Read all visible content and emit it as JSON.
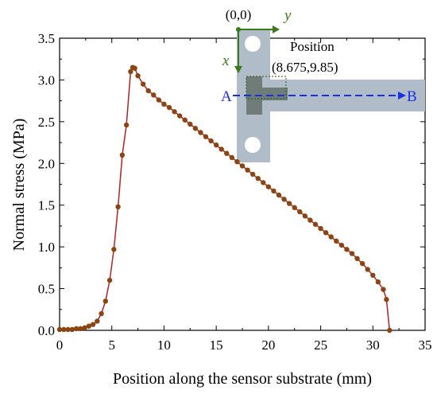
{
  "chart_data": {
    "type": "line",
    "title": "",
    "xlabel": "Position along the sensor substrate (mm)",
    "ylabel": "Normal stress (MPa)",
    "xlim": [
      0,
      35
    ],
    "ylim": [
      0,
      3.5
    ],
    "xticks": [
      "0",
      "5",
      "10",
      "15",
      "20",
      "25",
      "30",
      "35"
    ],
    "yticks": [
      "0.0",
      "0.5",
      "1.0",
      "1.5",
      "2.0",
      "2.5",
      "3.0",
      "3.5"
    ],
    "grid": false,
    "legend": "none",
    "line_color": "#b22222",
    "marker_color": "#8b4513",
    "series": [
      {
        "x": [
          0.0,
          0.4,
          0.8,
          1.2,
          1.6,
          2.0,
          2.4,
          2.8,
          3.2,
          3.6,
          4.0,
          4.4,
          4.8,
          5.2,
          5.6,
          6.0,
          6.4,
          6.8,
          7.0,
          7.2,
          7.5,
          8.0,
          8.5,
          9.0,
          9.5,
          10.0,
          10.5,
          11.0,
          11.5,
          12.0,
          12.5,
          13.0,
          13.5,
          14.0,
          14.5,
          15.0,
          15.5,
          16.0,
          16.5,
          17.0,
          17.5,
          18.0,
          18.5,
          19.0,
          19.5,
          20.0,
          20.5,
          21.0,
          21.5,
          22.0,
          22.5,
          23.0,
          23.5,
          24.0,
          24.5,
          25.0,
          25.5,
          26.0,
          26.5,
          27.0,
          27.5,
          28.0,
          28.5,
          29.0,
          29.5,
          30.0,
          30.5,
          31.0,
          31.3,
          31.6
        ],
        "y": [
          0.01,
          0.01,
          0.01,
          0.01,
          0.02,
          0.02,
          0.03,
          0.05,
          0.07,
          0.11,
          0.2,
          0.35,
          0.6,
          0.97,
          1.48,
          2.1,
          2.46,
          3.1,
          3.15,
          3.14,
          3.05,
          2.95,
          2.87,
          2.82,
          2.76,
          2.71,
          2.67,
          2.62,
          2.57,
          2.52,
          2.47,
          2.42,
          2.37,
          2.32,
          2.27,
          2.22,
          2.17,
          2.12,
          2.07,
          2.02,
          1.97,
          1.92,
          1.87,
          1.82,
          1.77,
          1.72,
          1.67,
          1.62,
          1.57,
          1.52,
          1.47,
          1.42,
          1.37,
          1.32,
          1.27,
          1.22,
          1.17,
          1.12,
          1.07,
          1.02,
          0.97,
          0.92,
          0.86,
          0.8,
          0.73,
          0.66,
          0.58,
          0.49,
          0.37,
          0.0
        ]
      }
    ]
  },
  "inset": {
    "origin_label": "(0,0)",
    "y_axis_label": "y",
    "x_axis_label": "x",
    "position_label": "Position",
    "position_coords": "(8.675,9.85)",
    "point_a": "A",
    "point_b": "B",
    "colors": {
      "plate": "#b0bcc8",
      "dark": "#6f7c78",
      "axes": "#3a7a1a",
      "arrow": "#1a2ee6"
    }
  }
}
